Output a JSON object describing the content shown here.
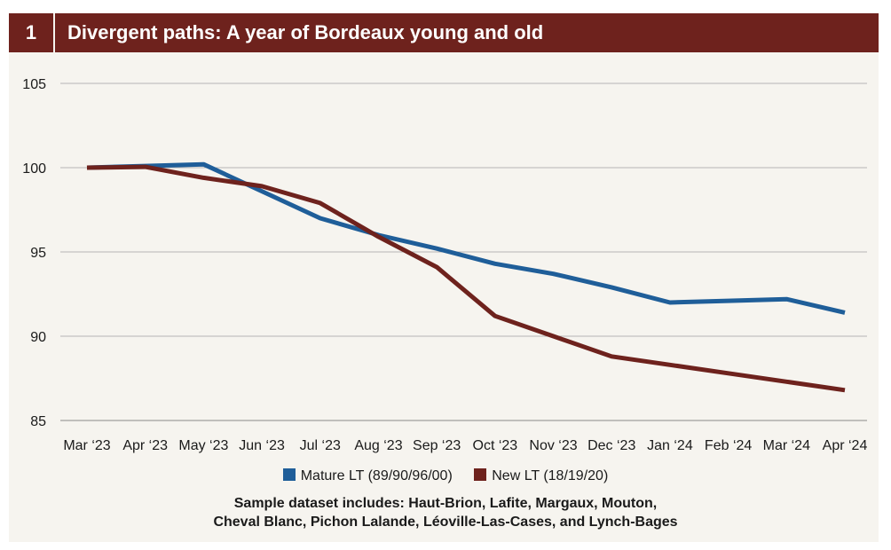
{
  "header": {
    "figure_number": "1",
    "title": "Divergent paths: A year of Bordeaux young and old"
  },
  "note": {
    "line1": "Sample dataset includes: Haut-Brion, Lafite, Margaux, Mouton,",
    "line2": "Cheval Blanc, Pichon Lalande, Léoville-Las-Cases, and Lynch-Bages"
  },
  "colors": {
    "header_bg": "#6e221d",
    "panel_bg": "#f6f4ef",
    "mature": "#1f5e99",
    "new": "#6e221d",
    "gridline": "#b5b5b5"
  },
  "chart_data": {
    "type": "line",
    "title": "Divergent paths: A year of Bordeaux young and old",
    "xlabel": "",
    "ylabel": "",
    "categories": [
      "Mar ‘23",
      "Apr ‘23",
      "May ‘23",
      "Jun ‘23",
      "Jul ‘23",
      "Aug ‘23",
      "Sep ‘23",
      "Oct ‘23",
      "Nov ‘23",
      "Dec ‘23",
      "Jan ‘24",
      "Feb ‘24",
      "Mar ‘24",
      "Apr ‘24"
    ],
    "series": [
      {
        "name": "Mature LT (89/90/96/00)",
        "color": "#1f5e99",
        "values": [
          100.0,
          100.1,
          100.2,
          98.6,
          97.0,
          96.0,
          95.2,
          94.3,
          93.7,
          92.9,
          92.0,
          92.1,
          92.2,
          91.4
        ]
      },
      {
        "name": "New LT (18/19/20)",
        "color": "#6e221d",
        "values": [
          100.0,
          100.05,
          99.4,
          98.9,
          97.9,
          95.9,
          94.1,
          91.2,
          90.0,
          88.8,
          88.3,
          87.8,
          87.3,
          86.8
        ]
      }
    ],
    "yticks": [
      85,
      90,
      95,
      100,
      105
    ],
    "ylim": [
      85,
      105
    ],
    "grid": true,
    "legend_position": "bottom"
  }
}
